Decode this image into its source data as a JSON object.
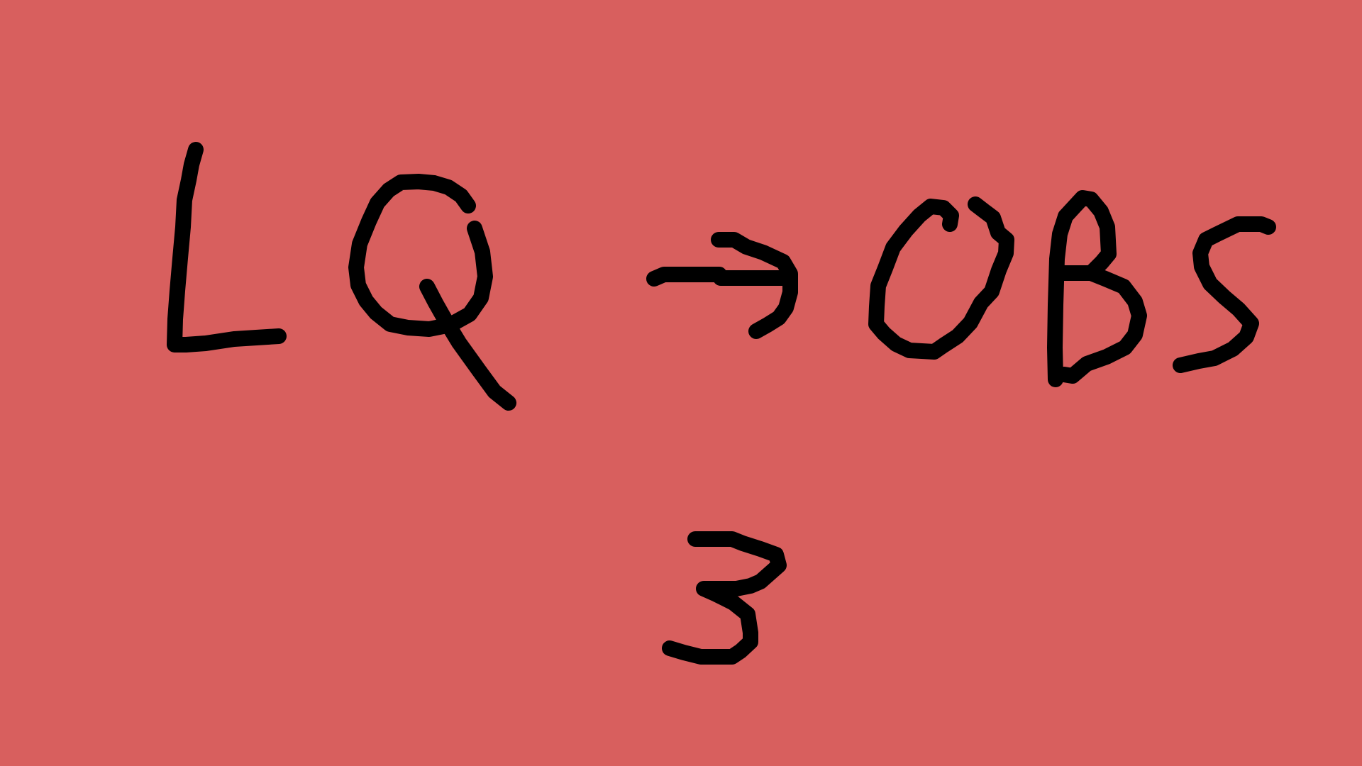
{
  "canvas": {
    "background_color": "#D85F5E",
    "ink_color": "#000000"
  },
  "handwriting": {
    "line1_left": "LQ",
    "arrow": "→",
    "line1_right": "OBS",
    "line2": "3"
  }
}
